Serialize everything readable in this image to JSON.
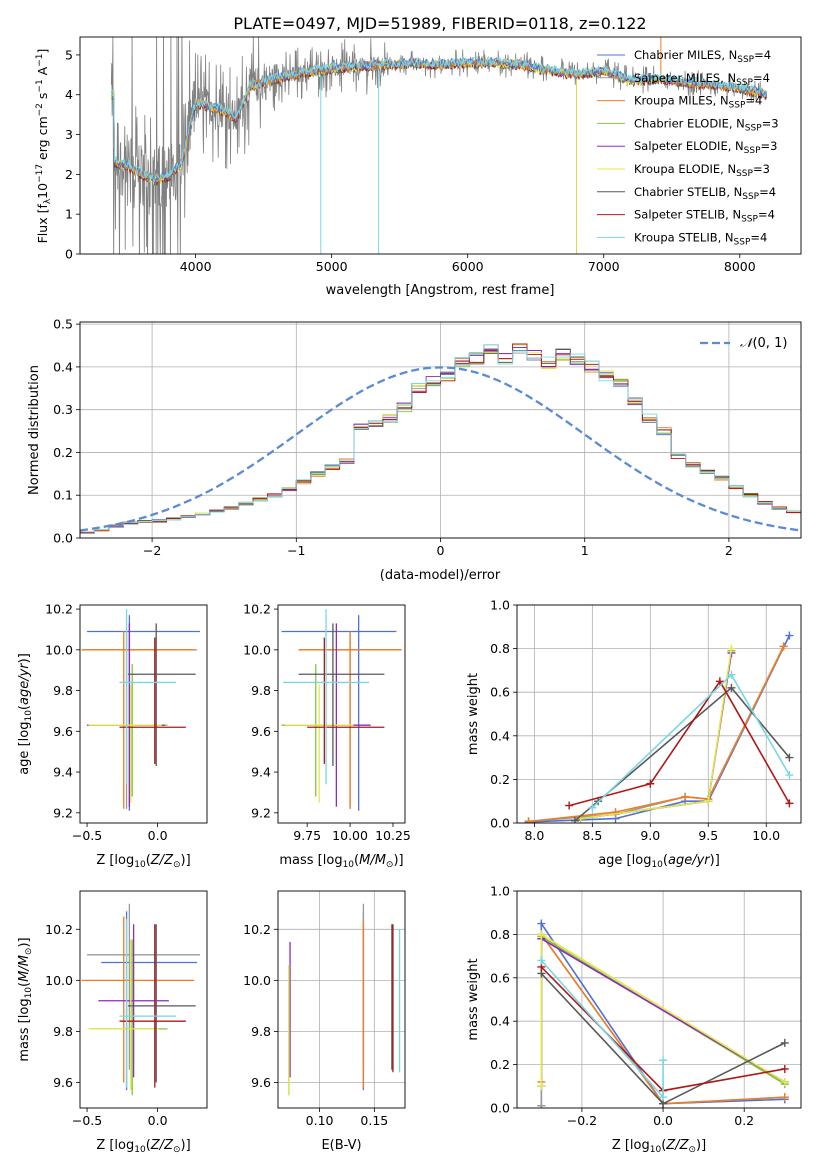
{
  "figure": {
    "title": "PLATE=0497, MJD=51989, FIBERID=0118, z=0.122"
  },
  "colors": {
    "Chabrier MILES": "#4f72d6",
    "Salpeter MILES": "#9a9a9a",
    "Kroupa MILES": "#ef7d23",
    "Chabrier ELODIE": "#86c442",
    "Salpeter ELODIE": "#8e2bbf",
    "Kroupa ELODIE": "#e3e84a",
    "Chabrier STELIB": "#595959",
    "Salpeter STELIB": "#b01818",
    "Kroupa STELIB": "#79d7e3",
    "normal": "#5b8ad6",
    "grid": "#b0b0b0"
  },
  "chart_data": [
    {
      "id": "spectrum",
      "type": "line",
      "xlabel": "wavelength [Angstrom, rest frame]",
      "ylabel_parts": [
        "Flux [f",
        "λ",
        "10",
        "−17",
        " erg cm",
        "−2",
        " s",
        "−1",
        " A",
        "−1",
        "]"
      ],
      "xlim": [
        3150,
        8450
      ],
      "ylim": [
        0,
        5.45
      ],
      "xticks": [
        4000,
        5000,
        6000,
        7000,
        8000
      ],
      "yticks": [
        0,
        1,
        2,
        3,
        4,
        5
      ],
      "legend": [
        {
          "name": "Chabrier MILES",
          "n": "4"
        },
        {
          "name": "Salpeter MILES",
          "n": "4"
        },
        {
          "name": "Kroupa MILES",
          "n": "4"
        },
        {
          "name": "Chabrier ELODIE",
          "n": "3"
        },
        {
          "name": "Salpeter ELODIE",
          "n": "3"
        },
        {
          "name": "Kroupa ELODIE",
          "n": "3"
        },
        {
          "name": "Chabrier STELIB",
          "n": "4"
        },
        {
          "name": "Salpeter STELIB",
          "n": "4"
        },
        {
          "name": "Kroupa STELIB",
          "n": "4"
        }
      ],
      "model_continuum": {
        "x": [
          3400,
          3500,
          3600,
          3700,
          3800,
          3900,
          3950,
          4000,
          4100,
          4200,
          4300,
          4400,
          4500,
          4600,
          4800,
          5000,
          5200,
          5400,
          5600,
          5800,
          6000,
          6200,
          6400,
          6600,
          6800,
          7000,
          7200,
          7400,
          7600,
          7800,
          8000,
          8200
        ],
        "y": [
          2.3,
          2.2,
          2.0,
          1.85,
          1.95,
          2.3,
          3.1,
          3.8,
          3.7,
          3.6,
          3.4,
          4.2,
          4.3,
          4.4,
          4.55,
          4.65,
          4.7,
          4.75,
          4.78,
          4.75,
          4.8,
          4.8,
          4.75,
          4.6,
          4.5,
          4.6,
          4.35,
          4.4,
          4.3,
          4.25,
          4.15,
          4.0
        ]
      },
      "data_range": [
        3380,
        8200
      ]
    },
    {
      "id": "residuals",
      "type": "step",
      "xlabel": "(data-model)/error",
      "ylabel": "Normed distribution",
      "xlim": [
        -2.5,
        2.5
      ],
      "ylim": [
        0,
        0.505
      ],
      "xticks": [
        -2,
        -1,
        0,
        1,
        2
      ],
      "yticks": [
        0.0,
        0.1,
        0.2,
        0.3,
        0.4,
        0.5
      ],
      "legend": "N(0,1)",
      "bin_width": 0.1,
      "bin_start": -2.5,
      "base": [
        0.012,
        0.018,
        0.028,
        0.035,
        0.038,
        0.04,
        0.045,
        0.05,
        0.056,
        0.063,
        0.07,
        0.08,
        0.09,
        0.1,
        0.115,
        0.132,
        0.15,
        0.165,
        0.18,
        0.26,
        0.27,
        0.28,
        0.305,
        0.35,
        0.365,
        0.38,
        0.41,
        0.42,
        0.44,
        0.42,
        0.44,
        0.43,
        0.41,
        0.43,
        0.42,
        0.4,
        0.38,
        0.36,
        0.32,
        0.28,
        0.25,
        0.19,
        0.17,
        0.155,
        0.14,
        0.12,
        0.1,
        0.082,
        0.07,
        0.06,
        0.05,
        0.045,
        0.04,
        0.035,
        0.03,
        0.028,
        0.025,
        0.02,
        0.015,
        0.012
      ]
    },
    {
      "id": "age-vs-Z",
      "type": "errorbar",
      "xlabel": "Z [log10(Z/Z⊙)]",
      "ylabel": "age  [log10(age/yr)]",
      "xlim": [
        -0.55,
        0.35
      ],
      "ylim": [
        9.15,
        10.22
      ],
      "xticks": [
        -0.5,
        0.0
      ],
      "yticks": [
        9.2,
        9.4,
        9.6,
        9.8,
        10.0,
        10.2
      ],
      "points": [
        {
          "m": "Chabrier MILES",
          "x": -0.2,
          "xe": [
            0.3,
            0.5
          ],
          "y": 10.09,
          "ye": [
            0.88,
            0.08
          ]
        },
        {
          "m": "Salpeter MILES",
          "x": -0.22,
          "xe": [
            0.3,
            0.5
          ],
          "y": 10.0,
          "ye": [
            0.78,
            0.09
          ]
        },
        {
          "m": "Kroupa MILES",
          "x": -0.24,
          "xe": [
            0.3,
            0.5
          ],
          "y": 10.0,
          "ye": [
            0.78,
            0.09
          ]
        },
        {
          "m": "Chabrier ELODIE",
          "x": -0.18,
          "xe": [
            0.3,
            0.25
          ],
          "y": 9.63,
          "ye": [
            0.35,
            0.3
          ]
        },
        {
          "m": "Salpeter ELODIE",
          "x": -0.2,
          "xe": [
            0.3,
            0.25
          ],
          "y": 9.63,
          "ye": [
            0.4,
            0.5
          ]
        },
        {
          "m": "Kroupa ELODIE",
          "x": -0.19,
          "xe": [
            0.3,
            0.22
          ],
          "y": 9.63,
          "ye": [
            0.38,
            0.2
          ]
        },
        {
          "m": "Chabrier STELIB",
          "x": -0.01,
          "xe": [
            0.2,
            0.28
          ],
          "y": 9.88,
          "ye": [
            0.45,
            0.25
          ]
        },
        {
          "m": "Salpeter STELIB",
          "x": -0.02,
          "xe": [
            0.25,
            0.22
          ],
          "y": 9.62,
          "ye": [
            0.18,
            0.44
          ]
        },
        {
          "m": "Kroupa STELIB",
          "x": -0.22,
          "xe": [
            0.05,
            0.35
          ],
          "y": 9.84,
          "ye": [
            0.5,
            0.36
          ]
        }
      ]
    },
    {
      "id": "age-vs-mass",
      "type": "errorbar",
      "xlabel": "mass [log10(M/M⊙)]",
      "xlim": [
        9.58,
        10.32
      ],
      "ylim": [
        9.15,
        10.22
      ],
      "xticks": [
        9.75,
        10.0,
        10.25
      ],
      "xticklabels": [
        "9.75",
        "10.00",
        "10.25"
      ],
      "yticks": [
        9.2,
        9.4,
        9.6,
        9.8,
        10.0,
        10.2
      ],
      "points": [
        {
          "m": "Chabrier MILES",
          "x": 10.05,
          "xe": [
            0.45,
            0.22
          ],
          "y": 10.09,
          "ye": [
            0.88,
            0.08
          ]
        },
        {
          "m": "Salpeter MILES",
          "x": 10.0,
          "xe": [
            0.3,
            0.3
          ],
          "y": 10.0,
          "ye": [
            0.78,
            0.09
          ]
        },
        {
          "m": "Kroupa MILES",
          "x": 10.0,
          "xe": [
            0.3,
            0.3
          ],
          "y": 10.0,
          "ye": [
            0.78,
            0.09
          ]
        },
        {
          "m": "Chabrier ELODIE",
          "x": 9.8,
          "xe": [
            0.2,
            0.2
          ],
          "y": 9.63,
          "ye": [
            0.35,
            0.3
          ]
        },
        {
          "m": "Salpeter ELODIE",
          "x": 9.92,
          "xe": [
            0.3,
            0.2
          ],
          "y": 9.63,
          "ye": [
            0.4,
            0.5
          ]
        },
        {
          "m": "Kroupa ELODIE",
          "x": 9.82,
          "xe": [
            0.2,
            0.2
          ],
          "y": 9.63,
          "ye": [
            0.38,
            0.2
          ]
        },
        {
          "m": "Chabrier STELIB",
          "x": 9.9,
          "xe": [
            0.2,
            0.3
          ],
          "y": 9.88,
          "ye": [
            0.45,
            0.25
          ]
        },
        {
          "m": "Salpeter STELIB",
          "x": 9.85,
          "xe": [
            0.1,
            0.35
          ],
          "y": 9.62,
          "ye": [
            0.18,
            0.44
          ]
        },
        {
          "m": "Kroupa STELIB",
          "x": 9.86,
          "xe": [
            0.25,
            0.25
          ],
          "y": 9.84,
          "ye": [
            0.5,
            0.36
          ]
        },
        {
          "m": "Salpeter MILES",
          "x": 10.1,
          "xe": [
            0.1,
            0.1
          ],
          "y": 10.0,
          "ye": [
            0.1,
            0.1
          ],
          "skip": true
        }
      ]
    },
    {
      "id": "massweight-vs-age",
      "type": "line",
      "xlabel": "age  [log10(age/yr)]",
      "ylabel": "mass weight",
      "xlim": [
        7.85,
        10.3
      ],
      "ylim": [
        0,
        1.0
      ],
      "xticks": [
        8.0,
        8.5,
        9.0,
        9.5,
        10.0
      ],
      "yticks": [
        0.0,
        0.2,
        0.4,
        0.6,
        0.8,
        1.0
      ],
      "series": [
        {
          "m": "Chabrier MILES",
          "x": [
            7.95,
            8.7,
            9.3,
            9.5,
            10.2
          ],
          "y": [
            0.005,
            0.02,
            0.1,
            0.1,
            0.86
          ]
        },
        {
          "m": "Salpeter MILES",
          "x": [
            7.95,
            8.7,
            9.3,
            9.5,
            10.15
          ],
          "y": [
            0.008,
            0.04,
            0.12,
            0.11,
            0.81
          ]
        },
        {
          "m": "Kroupa MILES",
          "x": [
            7.95,
            8.7,
            9.3,
            9.5,
            10.15
          ],
          "y": [
            0.007,
            0.05,
            0.12,
            0.11,
            0.81
          ]
        },
        {
          "m": "Chabrier ELODIE",
          "x": [
            8.4,
            9.5,
            9.7
          ],
          "y": [
            0.02,
            0.1,
            0.79
          ]
        },
        {
          "m": "Salpeter ELODIE",
          "x": [
            8.4,
            9.5,
            9.7
          ],
          "y": [
            0.02,
            0.1,
            0.78
          ]
        },
        {
          "m": "Kroupa ELODIE",
          "x": [
            8.4,
            9.5,
            9.7
          ],
          "y": [
            0.02,
            0.1,
            0.8
          ]
        },
        {
          "m": "Chabrier STELIB",
          "x": [
            8.35,
            8.55,
            9.7,
            10.2
          ],
          "y": [
            0.01,
            0.1,
            0.62,
            0.3
          ]
        },
        {
          "m": "Salpeter STELIB",
          "x": [
            8.3,
            9.0,
            9.6,
            10.2
          ],
          "y": [
            0.08,
            0.18,
            0.65,
            0.09
          ]
        },
        {
          "m": "Kroupa STELIB",
          "x": [
            8.5,
            9.7,
            10.2
          ],
          "y": [
            0.07,
            0.68,
            0.22
          ]
        }
      ]
    },
    {
      "id": "mass-vs-Z",
      "type": "errorbar",
      "xlabel": "Z [log10(Z/Z⊙)]",
      "ylabel": "mass [log10(M/M⊙)]",
      "xlim": [
        -0.55,
        0.35
      ],
      "ylim": [
        9.5,
        10.35
      ],
      "xticks": [
        -0.5,
        0.0
      ],
      "yticks": [
        9.6,
        9.8,
        10.0,
        10.2
      ],
      "points": [
        {
          "m": "Chabrier MILES",
          "x": -0.22,
          "xe": [
            0.18,
            0.5
          ],
          "y": 10.07,
          "ye": [
            0.5,
            0.2
          ]
        },
        {
          "m": "Salpeter MILES",
          "x": -0.2,
          "xe": [
            0.3,
            0.5
          ],
          "y": 10.1,
          "ye": [
            0.45,
            0.2
          ]
        },
        {
          "m": "Kroupa MILES",
          "x": -0.24,
          "xe": [
            0.3,
            0.5
          ],
          "y": 10.0,
          "ye": [
            0.4,
            0.25
          ]
        },
        {
          "m": "Chabrier ELODIE",
          "x": -0.18,
          "xe": [
            0.3,
            0.25
          ],
          "y": 9.81,
          "ye": [
            0.26,
            0.35
          ]
        },
        {
          "m": "Salpeter ELODIE",
          "x": -0.17,
          "xe": [
            0.25,
            0.25
          ],
          "y": 9.92,
          "ye": [
            0.3,
            0.3
          ]
        },
        {
          "m": "Kroupa ELODIE",
          "x": -0.19,
          "xe": [
            0.3,
            0.2
          ],
          "y": 9.81,
          "ye": [
            0.24,
            0.35
          ]
        },
        {
          "m": "Chabrier STELIB",
          "x": -0.01,
          "xe": [
            0.2,
            0.28
          ],
          "y": 9.9,
          "ye": [
            0.3,
            0.32
          ]
        },
        {
          "m": "Salpeter STELIB",
          "x": -0.02,
          "xe": [
            0.25,
            0.22
          ],
          "y": 9.84,
          "ye": [
            0.26,
            0.38
          ]
        },
        {
          "m": "Kroupa STELIB",
          "x": -0.22,
          "xe": [
            0.05,
            0.35
          ],
          "y": 9.86,
          "ye": [
            0.28,
            0.38
          ]
        }
      ]
    },
    {
      "id": "mass-vs-ebv",
      "type": "errorbar",
      "xlabel": "E(B-V)",
      "xlim": [
        0.062,
        0.178
      ],
      "ylim": [
        9.5,
        10.35
      ],
      "xticks": [
        0.1,
        0.15
      ],
      "xticklabels": [
        "0.10",
        "0.15"
      ],
      "yticks": [
        9.6,
        9.8,
        10.0,
        10.2
      ],
      "points": [
        {
          "m": "Chabrier MILES",
          "x": 0.14,
          "y": 10.07,
          "ye": [
            0.5,
            0.2
          ]
        },
        {
          "m": "Salpeter MILES",
          "x": 0.14,
          "y": 10.1,
          "ye": [
            0.45,
            0.2
          ]
        },
        {
          "m": "Kroupa MILES",
          "x": 0.14,
          "y": 10.0,
          "ye": [
            0.42,
            0.23
          ]
        },
        {
          "m": "Chabrier ELODIE",
          "x": 0.072,
          "y": 9.81,
          "ye": [
            0.26,
            0.25
          ]
        },
        {
          "m": "Salpeter ELODIE",
          "x": 0.073,
          "y": 9.92,
          "ye": [
            0.3,
            0.23
          ]
        },
        {
          "m": "Kroupa ELODIE",
          "x": 0.072,
          "y": 9.81,
          "ye": [
            0.26,
            0.25
          ]
        },
        {
          "m": "Chabrier STELIB",
          "x": 0.166,
          "y": 9.9,
          "ye": [
            0.25,
            0.32
          ]
        },
        {
          "m": "Salpeter STELIB",
          "x": 0.167,
          "y": 9.84,
          "ye": [
            0.2,
            0.38
          ]
        },
        {
          "m": "Kroupa STELIB",
          "x": 0.173,
          "y": 9.86,
          "ye": [
            0.22,
            0.34
          ]
        }
      ]
    },
    {
      "id": "massweight-vs-Z",
      "type": "line",
      "xlabel": "Z [log10(Z/Z⊙)]",
      "ylabel": "mass weight",
      "xlim": [
        -0.36,
        0.34
      ],
      "ylim": [
        0,
        1.0
      ],
      "xticks": [
        -0.2,
        0.0,
        0.2
      ],
      "yticks": [
        0.0,
        0.2,
        0.4,
        0.6,
        0.8,
        1.0
      ],
      "series": [
        {
          "m": "Chabrier MILES",
          "x": [
            -0.3,
            -0.3,
            0.0,
            0.3
          ],
          "y": [
            0.01,
            0.85,
            0.02,
            0.04
          ]
        },
        {
          "m": "Salpeter MILES",
          "x": [
            -0.3,
            -0.3,
            0.0,
            0.3
          ],
          "y": [
            0.01,
            0.8,
            0.02,
            0.05
          ]
        },
        {
          "m": "Kroupa MILES",
          "x": [
            -0.3,
            -0.3,
            0.0,
            0.3
          ],
          "y": [
            0.12,
            0.8,
            0.02,
            0.05
          ]
        },
        {
          "m": "Chabrier ELODIE",
          "x": [
            -0.3,
            -0.3,
            0.3
          ],
          "y": [
            0.1,
            0.79,
            0.11
          ]
        },
        {
          "m": "Salpeter ELODIE",
          "x": [
            -0.3,
            -0.3,
            0.3
          ],
          "y": [
            0.1,
            0.78,
            0.12
          ]
        },
        {
          "m": "Kroupa ELODIE",
          "x": [
            -0.3,
            -0.3,
            0.3
          ],
          "y": [
            0.1,
            0.8,
            0.12
          ]
        },
        {
          "m": "Chabrier STELIB",
          "x": [
            -0.3,
            0.0,
            0.3
          ],
          "y": [
            0.62,
            0.02,
            0.3
          ]
        },
        {
          "m": "Salpeter STELIB",
          "x": [
            -0.3,
            0.0,
            0.3
          ],
          "y": [
            0.65,
            0.08,
            0.18
          ]
        },
        {
          "m": "Kroupa STELIB",
          "x": [
            -0.3,
            0.0,
            0.0
          ],
          "y": [
            0.68,
            0.05,
            0.22
          ]
        }
      ]
    }
  ]
}
